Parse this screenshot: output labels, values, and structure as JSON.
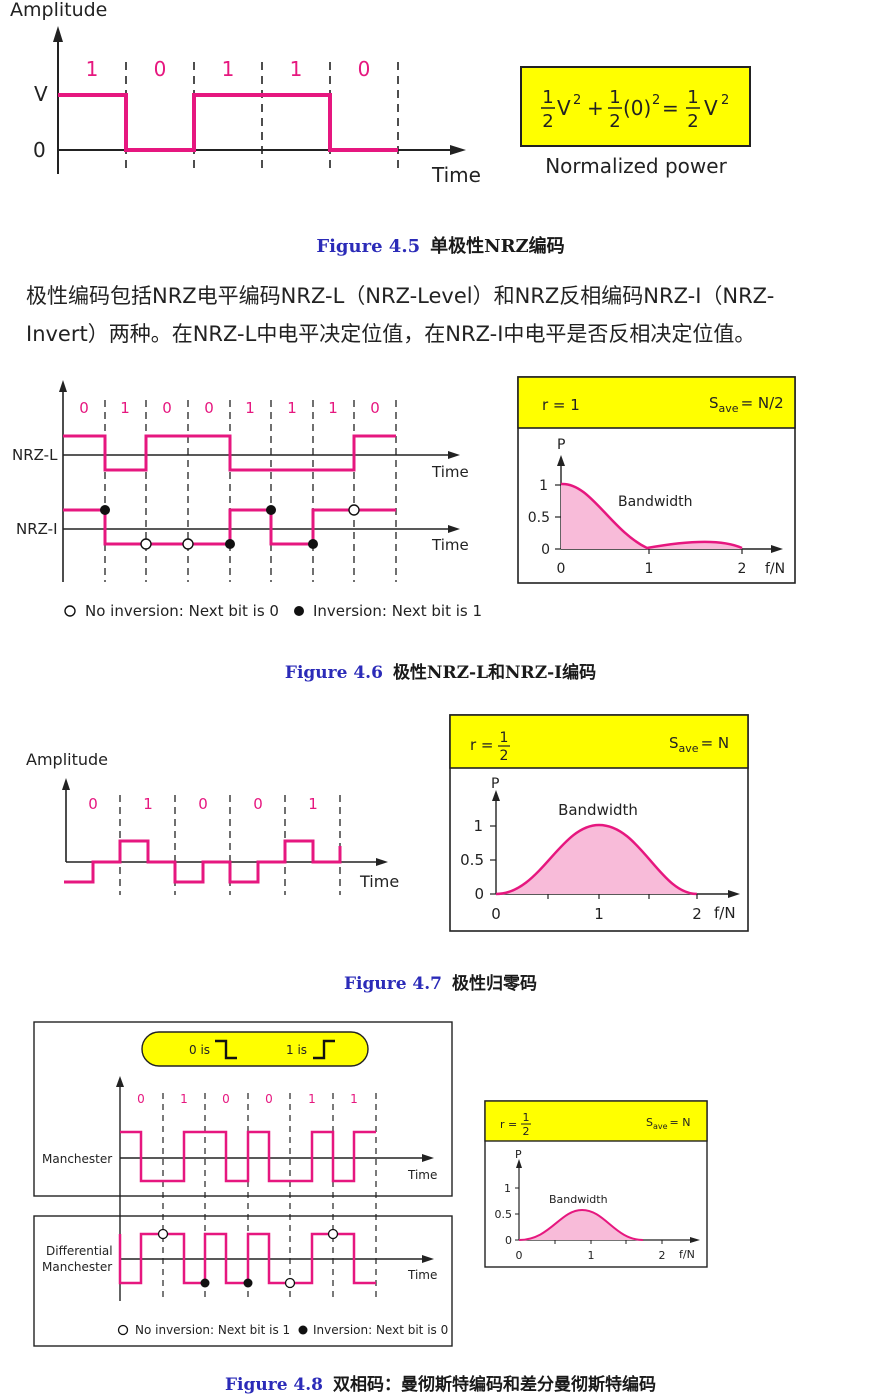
{
  "fig45": {
    "amplitude": "Amplitude",
    "bits": [
      "1",
      "0",
      "1",
      "1",
      "0"
    ],
    "level_v": "V",
    "level_0": "0",
    "time": "Time",
    "formula": {
      "half": "1",
      "den": "2",
      "v": "V",
      "sq": "2",
      "plus": "+",
      "zero": "(0)",
      "eq": "="
    },
    "power_label": "Normalized power",
    "caption_num": "Figure 4.5",
    "caption_text": "单极性NRZ编码"
  },
  "paragraph": "极性编码包括NRZ电平编码NRZ-L（NRZ-Level）和NRZ反相编码NRZ-I（NRZ-Invert）两种。在NRZ-L中电平决定位值，在NRZ-I中电平是否反相决定位值。",
  "fig46": {
    "bits": [
      "0",
      "1",
      "0",
      "0",
      "1",
      "1",
      "1",
      "0"
    ],
    "nrzl": "NRZ-L",
    "nrzi": "NRZ-I",
    "time": "Time",
    "legend_open": "No inversion: Next bit is 0",
    "legend_filled": "Inversion: Next bit is 1",
    "box": {
      "r": "r = 1",
      "s": "S",
      "s_sub": "ave",
      "s_val": "= N/2",
      "p": "P",
      "y_ticks": [
        "1",
        "0.5",
        "0"
      ],
      "x_ticks": [
        "0",
        "1",
        "2"
      ],
      "x_unit": "f/N",
      "bw": "Bandwidth"
    },
    "caption_num": "Figure 4.6",
    "caption_text": "极性NRZ-L和NRZ-I编码"
  },
  "fig47": {
    "amplitude": "Amplitude",
    "bits": [
      "0",
      "1",
      "0",
      "0",
      "1"
    ],
    "time": "Time",
    "box": {
      "r": "r =",
      "r_num": "1",
      "r_den": "2",
      "s": "S",
      "s_sub": "ave",
      "s_val": "= N",
      "p": "P",
      "y_ticks": [
        "1",
        "0.5",
        "0"
      ],
      "x_ticks": [
        "0",
        "1",
        "2"
      ],
      "x_unit": "f/N",
      "bw": "Bandwidth"
    },
    "caption_num": "Figure 4.7",
    "caption_text": "极性归零码"
  },
  "fig48": {
    "pill_0": "0 is",
    "pill_1": "1 is",
    "bits": [
      "0",
      "1",
      "0",
      "0",
      "1",
      "1"
    ],
    "manchester": "Manchester",
    "diff1": "Differential",
    "diff2": "Manchester",
    "time": "Time",
    "legend_open": "No inversion: Next bit is 1",
    "legend_filled": "Inversion: Next bit is 0",
    "box": {
      "r": "r =",
      "r_num": "1",
      "r_den": "2",
      "s": "S",
      "s_sub": "ave",
      "s_val": "= N",
      "p": "P",
      "y_ticks": [
        "1",
        "0.5",
        "0"
      ],
      "x_ticks": [
        "0",
        "1",
        "2"
      ],
      "x_unit": "f/N",
      "bw": "Bandwidth"
    },
    "caption_num": "Figure 4.8",
    "caption_text": "双相码：曼彻斯特编码和差分曼彻斯特编码"
  },
  "colors": {
    "signal": "#e6177f",
    "yellow": "#ffff00",
    "fill": "#f8bbd9",
    "caption_blue": "#2b2bb8"
  }
}
